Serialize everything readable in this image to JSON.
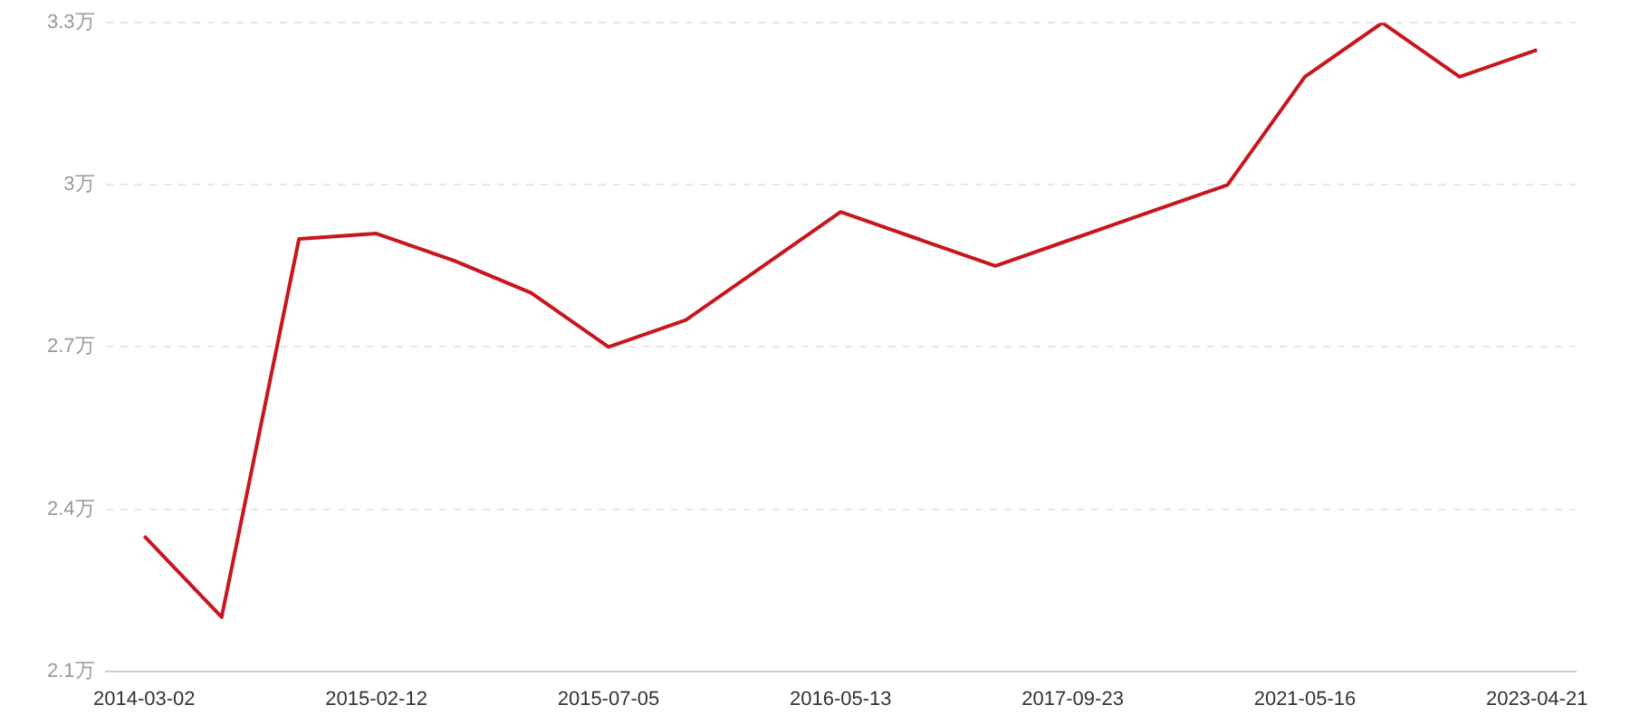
{
  "chart_data": {
    "type": "line",
    "categories": [
      "2014-03-02",
      null,
      null,
      "2015-02-12",
      null,
      null,
      "2015-07-05",
      null,
      null,
      "2016-05-13",
      null,
      null,
      "2017-09-23",
      null,
      null,
      "2021-05-16",
      null,
      null,
      "2023-04-21"
    ],
    "series": [
      {
        "color": "#c8161e",
        "values": [
          2.35,
          2.2,
          2.9,
          2.91,
          2.86,
          2.8,
          2.7,
          2.75,
          2.85,
          2.95,
          2.9,
          2.85,
          2.9,
          2.95,
          3.0,
          3.2,
          3.3,
          3.2,
          3.25
        ]
      }
    ],
    "ylim": [
      2.1,
      3.3
    ],
    "yticks": [
      {
        "value": 2.1,
        "label": "2.1万"
      },
      {
        "value": 2.4,
        "label": "2.4万"
      },
      {
        "value": 2.7,
        "label": "2.7万"
      },
      {
        "value": 3,
        "label": "3万"
      },
      {
        "value": 3.3,
        "label": "3.3万"
      }
    ],
    "grid": "y",
    "legend": false,
    "marker": "none",
    "line_style": "solid"
  }
}
